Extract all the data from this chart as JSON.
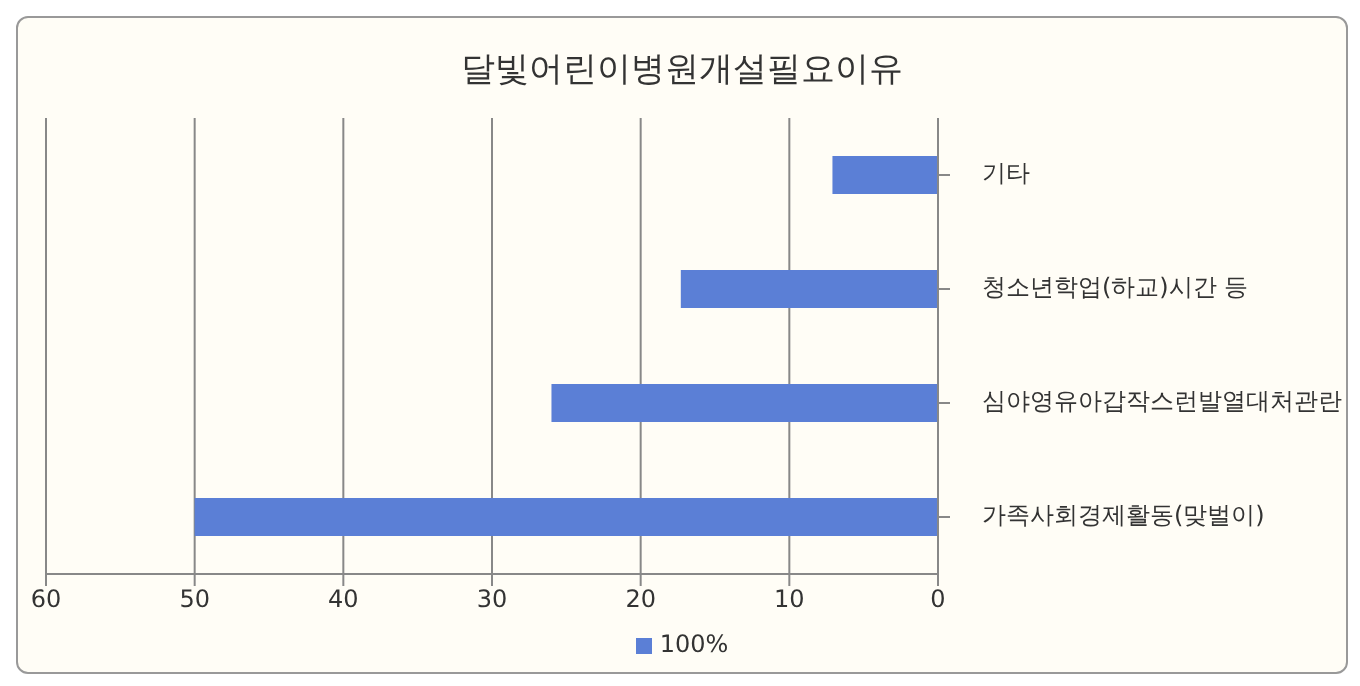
{
  "chart_data": {
    "type": "bar",
    "orientation": "horizontal",
    "title": "달빛어린이병원개설필요이유",
    "categories": [
      "기타",
      "청소년학업(하교)시간 등",
      "심야영유아갑작스런발열대처관란",
      "가족사회경제활동(맞벌이)"
    ],
    "series": [
      {
        "name": "100%",
        "color": "#5b7fd6",
        "values": [
          7.1,
          17.3,
          26,
          50
        ]
      }
    ],
    "xlim": [
      60,
      0
    ],
    "xticks": [
      60,
      50,
      40,
      30,
      20,
      10,
      0
    ],
    "grid": "x",
    "legend": "bottom"
  }
}
